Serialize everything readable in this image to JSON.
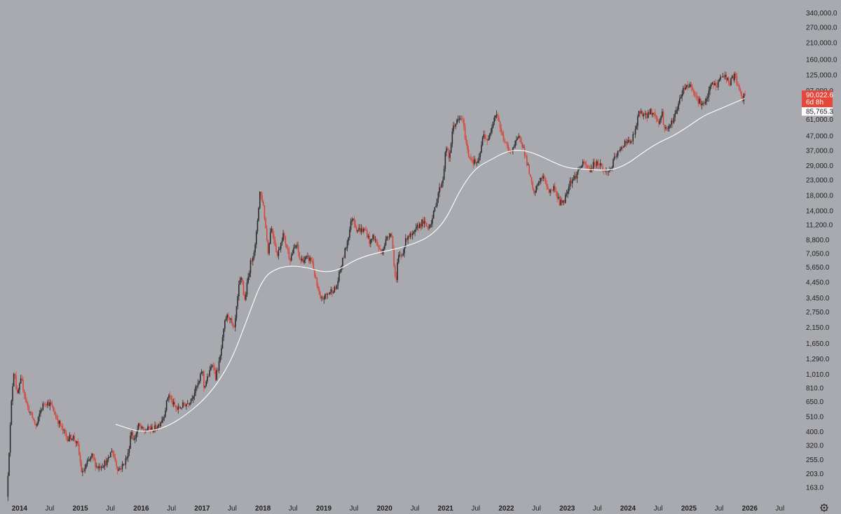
{
  "chart_data": {
    "type": "candlestick",
    "title": "",
    "xlabel": "",
    "ylabel": "",
    "y_scale": "log",
    "ylim": [
      130,
      400000
    ],
    "xlim": [
      "2013-10-01",
      "2026-10-15"
    ],
    "colors": {
      "background": "#a9aaaf",
      "up": "#2b2b2b",
      "down": "#d6453a",
      "ma_line": "#ffffff",
      "price_badge": "#e5483b",
      "ma_badge": "#ffffff"
    },
    "y_ticks": [
      {
        "value": 163,
        "label": "163.0"
      },
      {
        "value": 203,
        "label": "203.0"
      },
      {
        "value": 255,
        "label": "255.0"
      },
      {
        "value": 320,
        "label": "320.0"
      },
      {
        "value": 400,
        "label": "400.0"
      },
      {
        "value": 510,
        "label": "510.0"
      },
      {
        "value": 650,
        "label": "650.0"
      },
      {
        "value": 810,
        "label": "810.0"
      },
      {
        "value": 1010,
        "label": "1,010.0"
      },
      {
        "value": 1290,
        "label": "1,290.0"
      },
      {
        "value": 1650,
        "label": "1,650.0"
      },
      {
        "value": 2150,
        "label": "2,150.0"
      },
      {
        "value": 2750,
        "label": "2,750.0"
      },
      {
        "value": 3450,
        "label": "3,450.0"
      },
      {
        "value": 4450,
        "label": "4,450.0"
      },
      {
        "value": 5650,
        "label": "5,650.0"
      },
      {
        "value": 7050,
        "label": "7,050.0"
      },
      {
        "value": 8800,
        "label": "8,800.0"
      },
      {
        "value": 11200,
        "label": "11,200.0"
      },
      {
        "value": 14000,
        "label": "14,000.0"
      },
      {
        "value": 18000,
        "label": "18,000.0"
      },
      {
        "value": 23000,
        "label": "23,000.0"
      },
      {
        "value": 29000,
        "label": "29,000.0"
      },
      {
        "value": 37000,
        "label": "37,000.0"
      },
      {
        "value": 47000,
        "label": "47,000.0"
      },
      {
        "value": 61000,
        "label": "61,000.0"
      },
      {
        "value": 97000,
        "label": "97,000.0"
      },
      {
        "value": 125000,
        "label": "125,000.0"
      },
      {
        "value": 160000,
        "label": "160,000.0"
      },
      {
        "value": 210000,
        "label": "210,000.0"
      },
      {
        "value": 270000,
        "label": "270,000.0"
      },
      {
        "value": 340000,
        "label": "340,000.0"
      }
    ],
    "x_ticks": [
      {
        "date": "2014-01-01",
        "label": "2014",
        "year": true
      },
      {
        "date": "2014-07-01",
        "label": "Jul",
        "year": false
      },
      {
        "date": "2015-01-01",
        "label": "2015",
        "year": true
      },
      {
        "date": "2015-07-01",
        "label": "Jul",
        "year": false
      },
      {
        "date": "2016-01-01",
        "label": "2016",
        "year": true
      },
      {
        "date": "2016-07-01",
        "label": "Jul",
        "year": false
      },
      {
        "date": "2017-01-01",
        "label": "2017",
        "year": true
      },
      {
        "date": "2017-07-01",
        "label": "Jul",
        "year": false
      },
      {
        "date": "2018-01-01",
        "label": "2018",
        "year": true
      },
      {
        "date": "2018-07-01",
        "label": "Jul",
        "year": false
      },
      {
        "date": "2019-01-01",
        "label": "2019",
        "year": true
      },
      {
        "date": "2019-07-01",
        "label": "Jul",
        "year": false
      },
      {
        "date": "2020-01-01",
        "label": "2020",
        "year": true
      },
      {
        "date": "2020-07-01",
        "label": "Jul",
        "year": false
      },
      {
        "date": "2021-01-01",
        "label": "2021",
        "year": true
      },
      {
        "date": "2021-07-01",
        "label": "Jul",
        "year": false
      },
      {
        "date": "2022-01-01",
        "label": "2022",
        "year": true
      },
      {
        "date": "2022-07-01",
        "label": "Jul",
        "year": false
      },
      {
        "date": "2023-01-01",
        "label": "2023",
        "year": true
      },
      {
        "date": "2023-07-01",
        "label": "Jul",
        "year": false
      },
      {
        "date": "2024-01-01",
        "label": "2024",
        "year": true
      },
      {
        "date": "2024-07-01",
        "label": "Jul",
        "year": false
      },
      {
        "date": "2025-01-01",
        "label": "2025",
        "year": true
      },
      {
        "date": "2025-07-01",
        "label": "Jul",
        "year": false
      },
      {
        "date": "2026-01-01",
        "label": "2026",
        "year": true
      },
      {
        "date": "2026-07-01",
        "label": "Jul",
        "year": false
      }
    ],
    "price_path": [
      [
        "2013-10-20",
        140
      ],
      [
        "2013-11-20",
        750
      ],
      [
        "2013-12-04",
        1150
      ],
      [
        "2013-12-20",
        700
      ],
      [
        "2014-01-15",
        930
      ],
      [
        "2014-02-20",
        600
      ],
      [
        "2014-03-20",
        510
      ],
      [
        "2014-04-15",
        430
      ],
      [
        "2014-05-10",
        560
      ],
      [
        "2014-06-05",
        650
      ],
      [
        "2014-07-10",
        620
      ],
      [
        "2014-08-15",
        500
      ],
      [
        "2014-09-20",
        410
      ],
      [
        "2014-10-20",
        360
      ],
      [
        "2014-11-20",
        370
      ],
      [
        "2014-12-20",
        320
      ],
      [
        "2015-01-14",
        200
      ],
      [
        "2015-02-15",
        240
      ],
      [
        "2015-03-15",
        270
      ],
      [
        "2015-04-15",
        225
      ],
      [
        "2015-05-15",
        235
      ],
      [
        "2015-06-20",
        250
      ],
      [
        "2015-07-12",
        300
      ],
      [
        "2015-08-20",
        215
      ],
      [
        "2015-09-20",
        235
      ],
      [
        "2015-10-20",
        280
      ],
      [
        "2015-11-05",
        420
      ],
      [
        "2015-11-20",
        340
      ],
      [
        "2015-12-20",
        440
      ],
      [
        "2016-01-20",
        400
      ],
      [
        "2016-02-20",
        420
      ],
      [
        "2016-03-20",
        415
      ],
      [
        "2016-04-20",
        450
      ],
      [
        "2016-05-20",
        520
      ],
      [
        "2016-06-17",
        740
      ],
      [
        "2016-07-05",
        650
      ],
      [
        "2016-08-05",
        570
      ],
      [
        "2016-09-10",
        610
      ],
      [
        "2016-10-15",
        640
      ],
      [
        "2016-11-15",
        740
      ],
      [
        "2016-12-20",
        900
      ],
      [
        "2017-01-05",
        1130
      ],
      [
        "2017-01-15",
        820
      ],
      [
        "2017-02-20",
        1050
      ],
      [
        "2017-03-10",
        1250
      ],
      [
        "2017-03-25",
        950
      ],
      [
        "2017-04-20",
        1250
      ],
      [
        "2017-05-25",
        2500
      ],
      [
        "2017-06-15",
        2600
      ],
      [
        "2017-07-15",
        2000
      ],
      [
        "2017-08-15",
        4300
      ],
      [
        "2017-09-01",
        4800
      ],
      [
        "2017-09-15",
        3200
      ],
      [
        "2017-10-20",
        5900
      ],
      [
        "2017-11-20",
        8000
      ],
      [
        "2017-12-17",
        19000
      ],
      [
        "2018-01-05",
        16000
      ],
      [
        "2018-02-06",
        7000
      ],
      [
        "2018-02-20",
        11000
      ],
      [
        "2018-03-10",
        9200
      ],
      [
        "2018-04-01",
        6800
      ],
      [
        "2018-05-05",
        9700
      ],
      [
        "2018-06-15",
        6500
      ],
      [
        "2018-07-25",
        8200
      ],
      [
        "2018-08-15",
        6300
      ],
      [
        "2018-09-20",
        6500
      ],
      [
        "2018-10-25",
        6400
      ],
      [
        "2018-11-20",
        4400
      ],
      [
        "2018-12-15",
        3300
      ],
      [
        "2019-01-20",
        3600
      ],
      [
        "2019-02-20",
        3900
      ],
      [
        "2019-03-20",
        4000
      ],
      [
        "2019-04-10",
        5200
      ],
      [
        "2019-05-20",
        8000
      ],
      [
        "2019-06-26",
        13000
      ],
      [
        "2019-07-20",
        10500
      ],
      [
        "2019-08-15",
        10300
      ],
      [
        "2019-09-15",
        10200
      ],
      [
        "2019-10-10",
        8300
      ],
      [
        "2019-10-28",
        9400
      ],
      [
        "2019-12-15",
        7100
      ],
      [
        "2020-01-15",
        8800
      ],
      [
        "2020-02-13",
        10300
      ],
      [
        "2020-03-13",
        4200
      ],
      [
        "2020-03-25",
        6600
      ],
      [
        "2020-04-20",
        7000
      ],
      [
        "2020-05-20",
        9500
      ],
      [
        "2020-06-20",
        9300
      ],
      [
        "2020-07-25",
        11000
      ],
      [
        "2020-08-20",
        11800
      ],
      [
        "2020-09-20",
        10700
      ],
      [
        "2020-10-20",
        12500
      ],
      [
        "2020-11-20",
        18500
      ],
      [
        "2020-12-20",
        23500
      ],
      [
        "2021-01-08",
        40000
      ],
      [
        "2021-01-25",
        32000
      ],
      [
        "2021-02-20",
        55000
      ],
      [
        "2021-03-15",
        59000
      ],
      [
        "2021-04-14",
        63000
      ],
      [
        "2021-05-19",
        35000
      ],
      [
        "2021-06-22",
        31000
      ],
      [
        "2021-07-20",
        30000
      ],
      [
        "2021-08-20",
        48000
      ],
      [
        "2021-09-20",
        43000
      ],
      [
        "2021-10-20",
        64000
      ],
      [
        "2021-11-10",
        68000
      ],
      [
        "2021-12-05",
        49000
      ],
      [
        "2022-01-22",
        36000
      ],
      [
        "2022-02-20",
        40000
      ],
      [
        "2022-03-28",
        47000
      ],
      [
        "2022-05-10",
        30000
      ],
      [
        "2022-06-18",
        18000
      ],
      [
        "2022-07-20",
        23000
      ],
      [
        "2022-08-15",
        24000
      ],
      [
        "2022-09-20",
        19000
      ],
      [
        "2022-10-20",
        20500
      ],
      [
        "2022-11-21",
        15800
      ],
      [
        "2022-12-20",
        16800
      ],
      [
        "2023-01-20",
        22500
      ],
      [
        "2023-02-20",
        24000
      ],
      [
        "2023-03-20",
        28000
      ],
      [
        "2023-04-14",
        30000
      ],
      [
        "2023-05-20",
        27000
      ],
      [
        "2023-06-20",
        30500
      ],
      [
        "2023-07-20",
        29900
      ],
      [
        "2023-08-20",
        26000
      ],
      [
        "2023-09-20",
        27000
      ],
      [
        "2023-10-25",
        34500
      ],
      [
        "2023-11-20",
        37000
      ],
      [
        "2023-12-20",
        43500
      ],
      [
        "2024-01-20",
        41500
      ],
      [
        "2024-02-20",
        52000
      ],
      [
        "2024-03-14",
        71000
      ],
      [
        "2024-04-20",
        64000
      ],
      [
        "2024-05-20",
        70000
      ],
      [
        "2024-06-20",
        64500
      ],
      [
        "2024-07-05",
        56500
      ],
      [
        "2024-07-28",
        69000
      ],
      [
        "2024-08-05",
        54000
      ],
      [
        "2024-09-06",
        53000
      ],
      [
        "2024-10-20",
        69000
      ],
      [
        "2024-11-20",
        94000
      ],
      [
        "2024-12-17",
        106000
      ],
      [
        "2025-01-20",
        105000
      ],
      [
        "2025-02-25",
        84000
      ],
      [
        "2025-04-08",
        76000
      ],
      [
        "2025-05-22",
        110000
      ],
      [
        "2025-06-20",
        104000
      ],
      [
        "2025-07-14",
        122000
      ],
      [
        "2025-08-14",
        123000
      ],
      [
        "2025-09-01",
        108000
      ],
      [
        "2025-10-06",
        125000
      ],
      [
        "2025-10-20",
        110000
      ],
      [
        "2025-11-21",
        82000
      ],
      [
        "2025-12-01",
        90022.6
      ]
    ],
    "ma_path": [
      [
        "2015-08-01",
        450
      ],
      [
        "2015-11-01",
        415
      ],
      [
        "2016-01-01",
        400
      ],
      [
        "2016-04-01",
        410
      ],
      [
        "2016-07-01",
        450
      ],
      [
        "2016-10-01",
        530
      ],
      [
        "2017-01-01",
        650
      ],
      [
        "2017-04-01",
        860
      ],
      [
        "2017-07-01",
        1300
      ],
      [
        "2017-10-01",
        2500
      ],
      [
        "2018-01-01",
        4800
      ],
      [
        "2018-04-01",
        5600
      ],
      [
        "2018-07-01",
        5800
      ],
      [
        "2018-10-01",
        5600
      ],
      [
        "2019-01-01",
        5200
      ],
      [
        "2019-04-01",
        5400
      ],
      [
        "2019-07-01",
        6300
      ],
      [
        "2019-10-01",
        6900
      ],
      [
        "2020-01-01",
        7300
      ],
      [
        "2020-04-01",
        7700
      ],
      [
        "2020-07-01",
        8300
      ],
      [
        "2020-10-01",
        9300
      ],
      [
        "2021-01-01",
        12000
      ],
      [
        "2021-04-01",
        20000
      ],
      [
        "2021-07-01",
        28000
      ],
      [
        "2021-10-01",
        32000
      ],
      [
        "2022-01-01",
        36500
      ],
      [
        "2022-04-01",
        37500
      ],
      [
        "2022-07-01",
        35000
      ],
      [
        "2022-10-01",
        31000
      ],
      [
        "2023-01-01",
        28000
      ],
      [
        "2023-04-01",
        27500
      ],
      [
        "2023-07-01",
        27000
      ],
      [
        "2023-10-01",
        27000
      ],
      [
        "2024-01-01",
        30000
      ],
      [
        "2024-04-01",
        36000
      ],
      [
        "2024-07-01",
        42000
      ],
      [
        "2024-10-01",
        47000
      ],
      [
        "2025-01-01",
        55000
      ],
      [
        "2025-04-01",
        65000
      ],
      [
        "2025-07-01",
        72000
      ],
      [
        "2025-10-01",
        80000
      ],
      [
        "2025-12-01",
        85765.3
      ]
    ],
    "current_price": {
      "value": 90022.6,
      "label": "90,022.6",
      "countdown": "6d 8h"
    },
    "ma_value": {
      "value": 85765.3,
      "label": "85,765.3"
    },
    "settings_icon": "gear-icon"
  }
}
